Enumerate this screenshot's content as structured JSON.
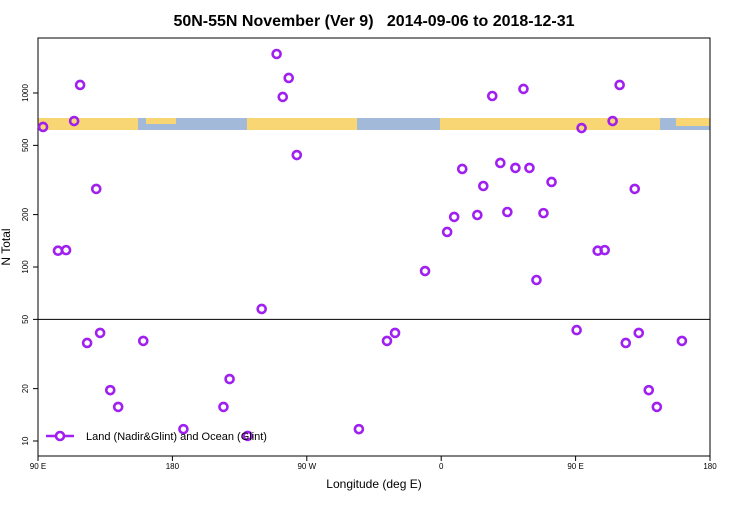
{
  "chart_data": {
    "type": "scatter",
    "title": "50N-55N November (Ver 9)   2014-09-06 to 2018-12-31",
    "x_label": "Longitude (deg E)",
    "y_label": "N Total",
    "x": [
      93.4,
      103.4,
      108.8,
      114.2,
      118.2,
      122.9,
      129.0,
      131.6,
      138.4,
      143.7,
      160.5,
      187.4,
      214.2,
      218.3,
      230.4,
      239.8,
      249.8,
      253.9,
      257.9,
      263.3,
      304.9,
      323.7,
      329.1,
      349.2,
      364.0,
      368.7,
      374.1,
      384.2,
      388.2,
      394.2,
      399.6,
      404.3,
      409.7,
      415.1,
      419.1,
      423.8,
      428.5,
      433.9,
      450.7,
      454.0,
      464.8,
      469.5,
      474.8,
      479.5,
      483.6,
      489.6,
      492.3,
      499.0,
      504.4,
      521.2
    ],
    "series": [
      {
        "name": "Land (Nadir&Glint) and Ocean (Glint)",
        "color": "#a020f0",
        "values": [
          638,
          124,
          125,
          690,
          1112,
          36.6,
          281,
          41.8,
          19.6,
          15.7,
          37.6,
          11.7,
          15.7,
          22.7,
          10.7,
          57.4,
          1675,
          949,
          1220,
          440,
          11.7,
          37.6,
          41.8,
          94.8,
          159,
          194,
          366,
          199,
          292,
          961,
          396,
          207,
          371,
          1055,
          371,
          84.2,
          204,
          308,
          43.4,
          629,
          124,
          125,
          690,
          1112,
          36.6,
          281,
          41.8,
          19.6,
          15.7,
          37.6
        ]
      }
    ],
    "xlim": [
      90,
      540
    ],
    "xticks": [
      {
        "value": 90,
        "label": "90 E"
      },
      180,
      {
        "value": 270,
        "label": "90 W"
      },
      {
        "value": 360,
        "label": "0"
      },
      {
        "value": 450,
        "label": "90 E"
      },
      {
        "value": 540,
        "label": "180"
      }
    ],
    "ylim": [
      8.2,
      2070
    ],
    "yticks": [
      10,
      20,
      50,
      100,
      200,
      500,
      1000
    ],
    "log_y": true,
    "reference_line": 50,
    "legend": "bottomleft"
  }
}
